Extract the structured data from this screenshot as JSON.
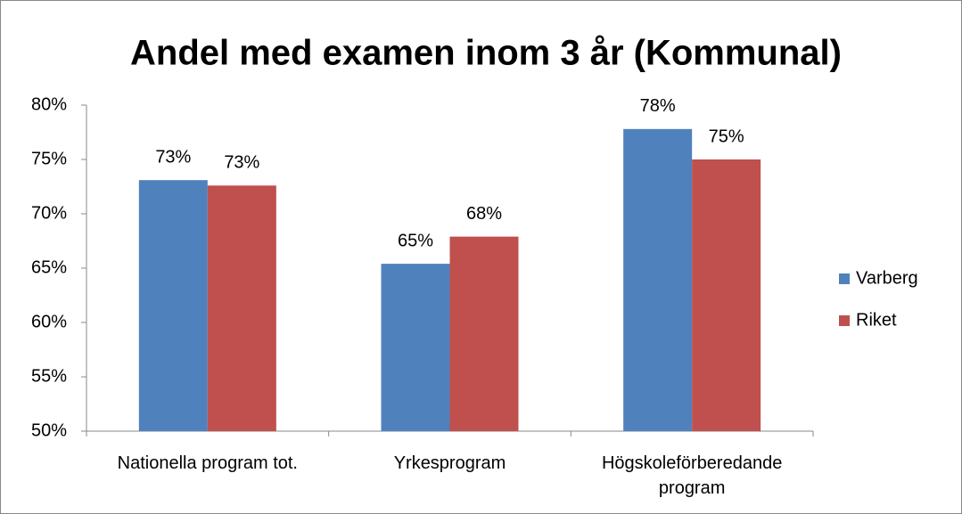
{
  "chart_data": {
    "type": "bar",
    "title": "Andel med examen inom 3 år (Kommunal)",
    "categories": [
      "Nationella program tot.",
      "Yrkesprogram",
      "Högskoleförberedande program"
    ],
    "series": [
      {
        "name": "Varberg",
        "color": "#4f81bd",
        "values": [
          73.1,
          65.4,
          77.8
        ],
        "value_labels": [
          "73%",
          "65%",
          "78%"
        ]
      },
      {
        "name": "Riket",
        "color": "#c0504d",
        "values": [
          72.6,
          67.9,
          75.0
        ],
        "value_labels": [
          "73%",
          "68%",
          "75%"
        ]
      }
    ],
    "ylim": [
      50,
      80
    ],
    "yticks": [
      {
        "value": 50,
        "label": "50%"
      },
      {
        "value": 55,
        "label": "55%"
      },
      {
        "value": 60,
        "label": "60%"
      },
      {
        "value": 65,
        "label": "65%"
      },
      {
        "value": 70,
        "label": "70%"
      },
      {
        "value": 75,
        "label": "75%"
      },
      {
        "value": 80,
        "label": "80%"
      }
    ],
    "legend": "right"
  }
}
